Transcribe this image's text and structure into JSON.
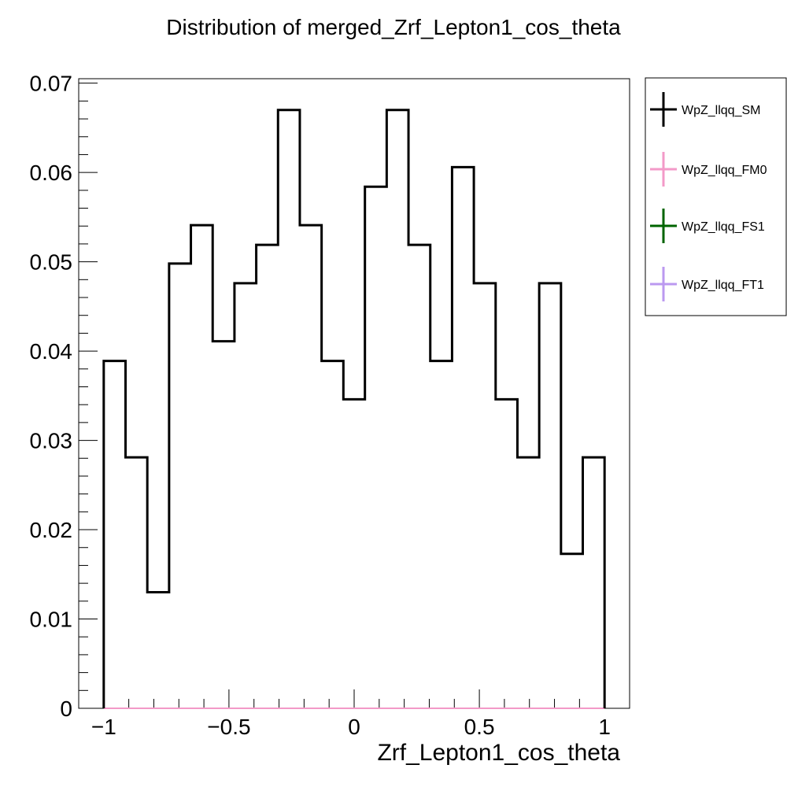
{
  "chart_data": {
    "type": "histogram",
    "title": "Distribution of merged_Zrf_Lepton1_cos_theta",
    "xlabel": "Zrf_Lepton1_cos_theta",
    "ylabel": "",
    "xlim": [
      -1.1,
      1.1
    ],
    "ylim": [
      0,
      0.0705
    ],
    "bin_edges": [
      -1.0,
      -0.913,
      -0.826,
      -0.739,
      -0.652,
      -0.565,
      -0.478,
      -0.391,
      -0.304,
      -0.217,
      -0.13,
      -0.043,
      0.043,
      0.13,
      0.217,
      0.304,
      0.391,
      0.478,
      0.565,
      0.652,
      0.739,
      0.826,
      0.913,
      1.0
    ],
    "x_ticks": [
      -1,
      -0.5,
      0,
      0.5,
      1
    ],
    "x_tick_labels": [
      "−1",
      "−0.5",
      "0",
      "0.5",
      "1"
    ],
    "y_ticks": [
      0,
      0.01,
      0.02,
      0.03,
      0.04,
      0.05,
      0.06,
      0.07
    ],
    "y_tick_labels": [
      "0",
      "0.01",
      "0.02",
      "0.03",
      "0.04",
      "0.05",
      "0.06",
      "0.07"
    ],
    "legend_position": "outside-right-top",
    "grid": false,
    "series": [
      {
        "name": "WpZ_llqq_SM",
        "color": "#000000",
        "values": [
          0.0389,
          0.0281,
          0.013,
          0.0498,
          0.0541,
          0.0411,
          0.0476,
          0.0519,
          0.067,
          0.0541,
          0.0389,
          0.0346,
          0.0584,
          0.067,
          0.0519,
          0.0389,
          0.0606,
          0.0476,
          0.0346,
          0.0281,
          0.0476,
          0.0173,
          0.0281
        ]
      },
      {
        "name": "WpZ_llqq_FM0",
        "color": "#f39ac8",
        "values": [
          0,
          0,
          0,
          0,
          0,
          0,
          0,
          0,
          0,
          0,
          0,
          0,
          0,
          0,
          0,
          0,
          0,
          0,
          0,
          0,
          0,
          0,
          0
        ]
      },
      {
        "name": "WpZ_llqq_FS1",
        "color": "#006400",
        "values": [
          0,
          0,
          0,
          0,
          0,
          0,
          0,
          0,
          0,
          0,
          0,
          0,
          0,
          0,
          0,
          0,
          0,
          0,
          0,
          0,
          0,
          0,
          0
        ]
      },
      {
        "name": "WpZ_llqq_FT1",
        "color": "#bb99f0",
        "values": [
          0,
          0,
          0,
          0,
          0,
          0,
          0,
          0,
          0,
          0,
          0,
          0,
          0,
          0,
          0,
          0,
          0,
          0,
          0,
          0,
          0,
          0,
          0
        ]
      }
    ]
  }
}
